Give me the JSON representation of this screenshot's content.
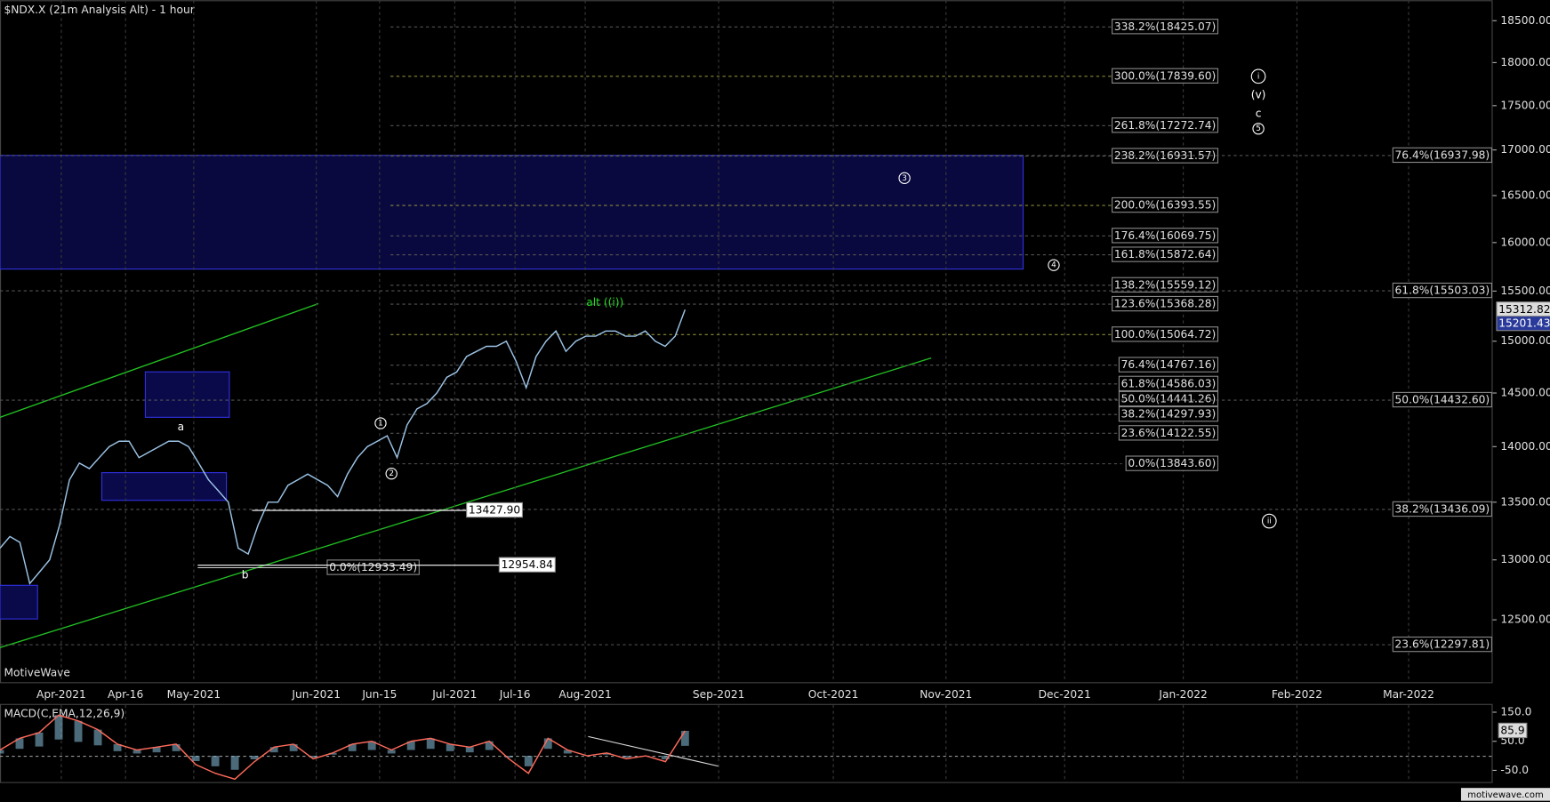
{
  "chart_data": [
    {
      "type": "line",
      "title": "$NDX.X (21m Analysis Alt) - 1 hour",
      "log": true,
      "color": "#9cc3e6",
      "ylim": [
        12000,
        18750
      ],
      "yticks": [
        {
          "value": 12500,
          "label": "12500.00"
        },
        {
          "value": 13000,
          "label": "13000.00"
        },
        {
          "value": 13500,
          "label": "13500.00"
        },
        {
          "value": 14000,
          "label": "14000.00"
        },
        {
          "value": 14500,
          "label": "14500.00"
        },
        {
          "value": 15000,
          "label": "15000.00"
        },
        {
          "value": 15500,
          "label": "15500.00"
        },
        {
          "value": 16000,
          "label": "16000.00"
        },
        {
          "value": 16500,
          "label": "16500.00"
        },
        {
          "value": 17000,
          "label": "17000.00"
        },
        {
          "value": 17500,
          "label": "17500.00"
        },
        {
          "value": 18000,
          "label": "18000.00"
        },
        {
          "value": 18500,
          "label": "18500.00"
        }
      ],
      "x_labels": [
        "Apr-2021",
        "Apr-16",
        "May-2021",
        "Jun-2021",
        "Jun-15",
        "Jul-2021",
        "Jul-16",
        "Aug-2021",
        "Sep-2021",
        "Oct-2021",
        "Nov-2021",
        "Dec-2021",
        "Jan-2022",
        "Feb-2022",
        "Mar-2022"
      ],
      "values": [
        13100,
        13200,
        13150,
        12800,
        12900,
        13000,
        13300,
        13700,
        13850,
        13800,
        13900,
        14000,
        14050,
        14050,
        13900,
        13950,
        14000,
        14050,
        14050,
        14000,
        13850,
        13700,
        13600,
        13500,
        13100,
        13050,
        13300,
        13500,
        13500,
        13650,
        13700,
        13750,
        13700,
        13650,
        13550,
        13750,
        13900,
        14000,
        14050,
        14100,
        13900,
        14200,
        14350,
        14400,
        14500,
        14650,
        14700,
        14850,
        14900,
        14950,
        14950,
        15000,
        14800,
        14550,
        14850,
        15000,
        15100,
        14900,
        15000,
        15050,
        15050,
        15100,
        15100,
        15050,
        15050,
        15100,
        15000,
        14950,
        15050,
        15312.82
      ],
      "price_labels": [
        {
          "value": 15201.43,
          "label": "15201.43"
        }
      ],
      "fib_levels": [
        {
          "value": 18425.07,
          "label": "338.2%(18425.07)",
          "color": "#555555"
        },
        {
          "value": 17839.6,
          "label": "300.0%(17839.60)",
          "color": "#8a8a3a"
        },
        {
          "value": 17272.74,
          "label": "261.8%(17272.74)",
          "color": "#555555"
        },
        {
          "value": 16931.57,
          "label": "238.2%(16931.57)",
          "color": "#555555"
        },
        {
          "value": 16393.55,
          "label": "200.0%(16393.55)",
          "color": "#8a8a3a"
        },
        {
          "value": 16069.75,
          "label": "176.4%(16069.75)",
          "color": "#555555"
        },
        {
          "value": 15872.64,
          "label": "161.8%(15872.64)",
          "color": "#555555"
        },
        {
          "value": 15559.12,
          "label": "138.2%(15559.12)",
          "color": "#555555"
        },
        {
          "value": 15368.28,
          "label": "123.6%(15368.28)",
          "color": "#555555"
        },
        {
          "value": 15064.72,
          "label": "100.0%(15064.72)",
          "color": "#8a8a3a"
        },
        {
          "value": 14767.16,
          "label": "76.4%(14767.16)",
          "color": "#555555"
        },
        {
          "value": 14586.03,
          "label": "61.8%(14586.03)",
          "color": "#555555"
        },
        {
          "value": 14441.26,
          "label": "50.0%(14441.26)",
          "color": "#555555"
        },
        {
          "value": 14297.93,
          "label": "38.2%(14297.93)",
          "color": "#555555"
        },
        {
          "value": 14122.55,
          "label": "23.6%(14122.55)",
          "color": "#555555"
        },
        {
          "value": 13843.6,
          "label": "0.0%(13843.60)",
          "color": "#555555"
        }
      ],
      "fib_levels_right": [
        {
          "value": 16937.98,
          "label": "76.4%(16937.98)",
          "color": "#555555"
        },
        {
          "value": 15503.03,
          "label": "61.8%(15503.03)",
          "color": "#555555"
        },
        {
          "value": 14432.6,
          "label": "50.0%(14432.60)",
          "color": "#555555"
        },
        {
          "value": 13436.09,
          "label": "38.2%(13436.09)",
          "color": "#555555"
        },
        {
          "value": 12297.81,
          "label": "23.6%(12297.81)",
          "color": "#555555"
        }
      ],
      "fib_base": {
        "value": 12933.49,
        "label": "0.0%(12933.49)"
      },
      "swing_labels": [
        {
          "value": 13427.9,
          "label": "13427.90"
        },
        {
          "value": 12954.84,
          "label": "12954.84"
        }
      ],
      "waves": [
        "a",
        "b",
        "1",
        "2",
        "3",
        "4",
        "5",
        "c",
        "(v)",
        "i",
        "ii",
        "alt ((i))"
      ],
      "brand": "MotiveWave",
      "footer": "motivewave.com"
    },
    {
      "type": "macd",
      "title": "MACD(C,EMA,12,26,9)",
      "color": "#ff6a5a",
      "ylim": [
        -90,
        175
      ],
      "yticks": [
        {
          "value": 150,
          "label": "150.0"
        },
        {
          "value": 50,
          "label": "50.0"
        },
        {
          "value": -50,
          "label": "-50.0"
        }
      ],
      "values": [
        20,
        60,
        80,
        140,
        120,
        90,
        40,
        20,
        30,
        40,
        -30,
        -60,
        -80,
        -20,
        30,
        40,
        -10,
        10,
        40,
        50,
        20,
        50,
        60,
        40,
        30,
        50,
        -10,
        -60,
        60,
        20,
        0,
        10,
        -10,
        0,
        -20,
        85.9
      ]
    }
  ]
}
